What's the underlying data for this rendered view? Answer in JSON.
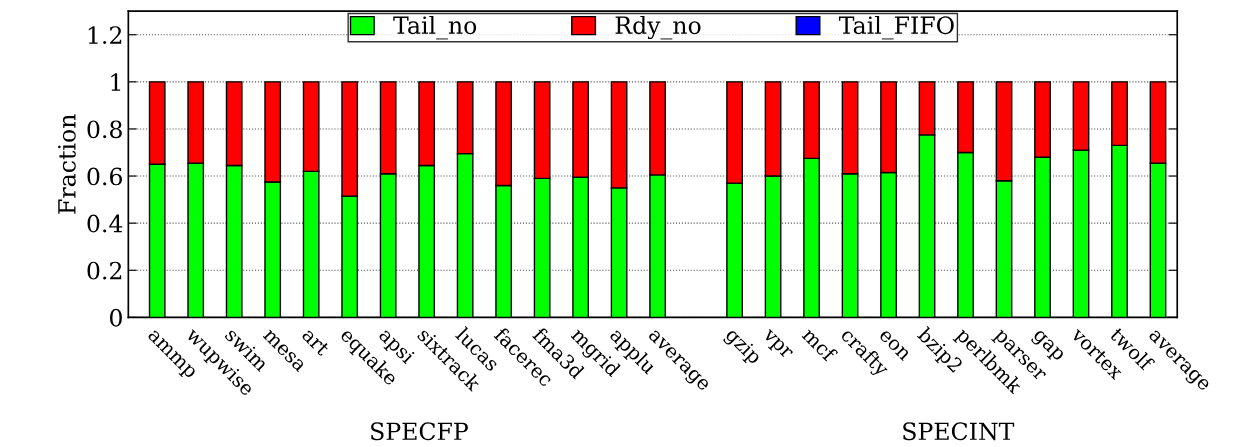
{
  "chart_data": {
    "type": "bar",
    "stacked": true,
    "ylabel": "Fraction",
    "ylim": [
      0,
      1.3
    ],
    "yticks": [
      0,
      0.2,
      0.4,
      0.6,
      0.8,
      1,
      1.2
    ],
    "grid": "y",
    "legend": "top",
    "line_style": "dotted",
    "categories": [
      "ammp",
      "wupwise",
      "swim",
      "mesa",
      "art",
      "equake",
      "apsi",
      "sixtrack",
      "lucas",
      "facerec",
      "fma3d",
      "mgrid",
      "applu",
      "average",
      null,
      "gzip",
      "vpr",
      "mcf",
      "crafty",
      "eon",
      "bzip2",
      "perlbmk",
      "parser",
      "gap",
      "vortex",
      "twolf",
      "average"
    ],
    "series": [
      {
        "name": "Tail_no",
        "color": "#00ff00",
        "values": [
          0.65,
          0.655,
          0.645,
          0.575,
          0.62,
          0.515,
          0.61,
          0.645,
          0.695,
          0.56,
          0.59,
          0.595,
          0.55,
          0.605,
          null,
          0.57,
          0.6,
          0.675,
          0.61,
          0.615,
          0.775,
          0.7,
          0.58,
          0.68,
          0.71,
          0.73,
          0.655
        ]
      },
      {
        "name": "Rdy_no",
        "color": "#ff0000",
        "values": [
          0.35,
          0.345,
          0.355,
          0.425,
          0.38,
          0.485,
          0.39,
          0.355,
          0.305,
          0.44,
          0.41,
          0.405,
          0.45,
          0.395,
          null,
          0.43,
          0.4,
          0.325,
          0.39,
          0.385,
          0.225,
          0.3,
          0.42,
          0.32,
          0.29,
          0.27,
          0.345
        ]
      },
      {
        "name": "Tail_FIFO",
        "color": "#0000ff",
        "values": [
          null,
          null,
          null,
          null,
          null,
          null,
          null,
          null,
          null,
          null,
          null,
          null,
          null,
          null,
          null,
          null,
          null,
          null,
          null,
          null,
          null,
          null,
          null,
          null,
          null,
          null,
          null
        ]
      }
    ],
    "annotations": [
      "SPECFP",
      "SPECINT"
    ]
  }
}
